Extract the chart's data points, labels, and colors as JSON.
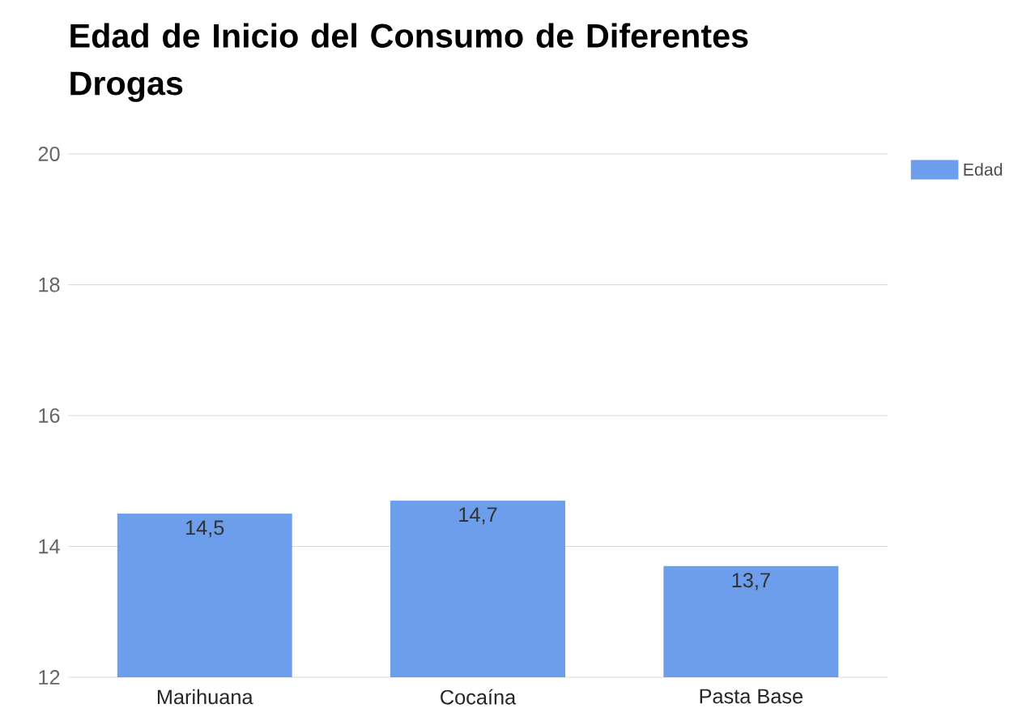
{
  "chart_data": {
    "type": "bar",
    "title": "Edad de Inicio del Consumo de Diferentes Drogas",
    "categories": [
      "Marihuana",
      "Cocaína",
      "Pasta Base"
    ],
    "series": [
      {
        "name": "Edad",
        "color": "#6d9eeb",
        "values": [
          14.5,
          14.7,
          13.7
        ],
        "value_labels": [
          "14,5",
          "14,7",
          "13,7"
        ]
      }
    ],
    "ylim": [
      12,
      20
    ],
    "yticks": [
      12,
      14,
      16,
      18,
      20
    ],
    "grid": "y",
    "legend": "top right"
  }
}
